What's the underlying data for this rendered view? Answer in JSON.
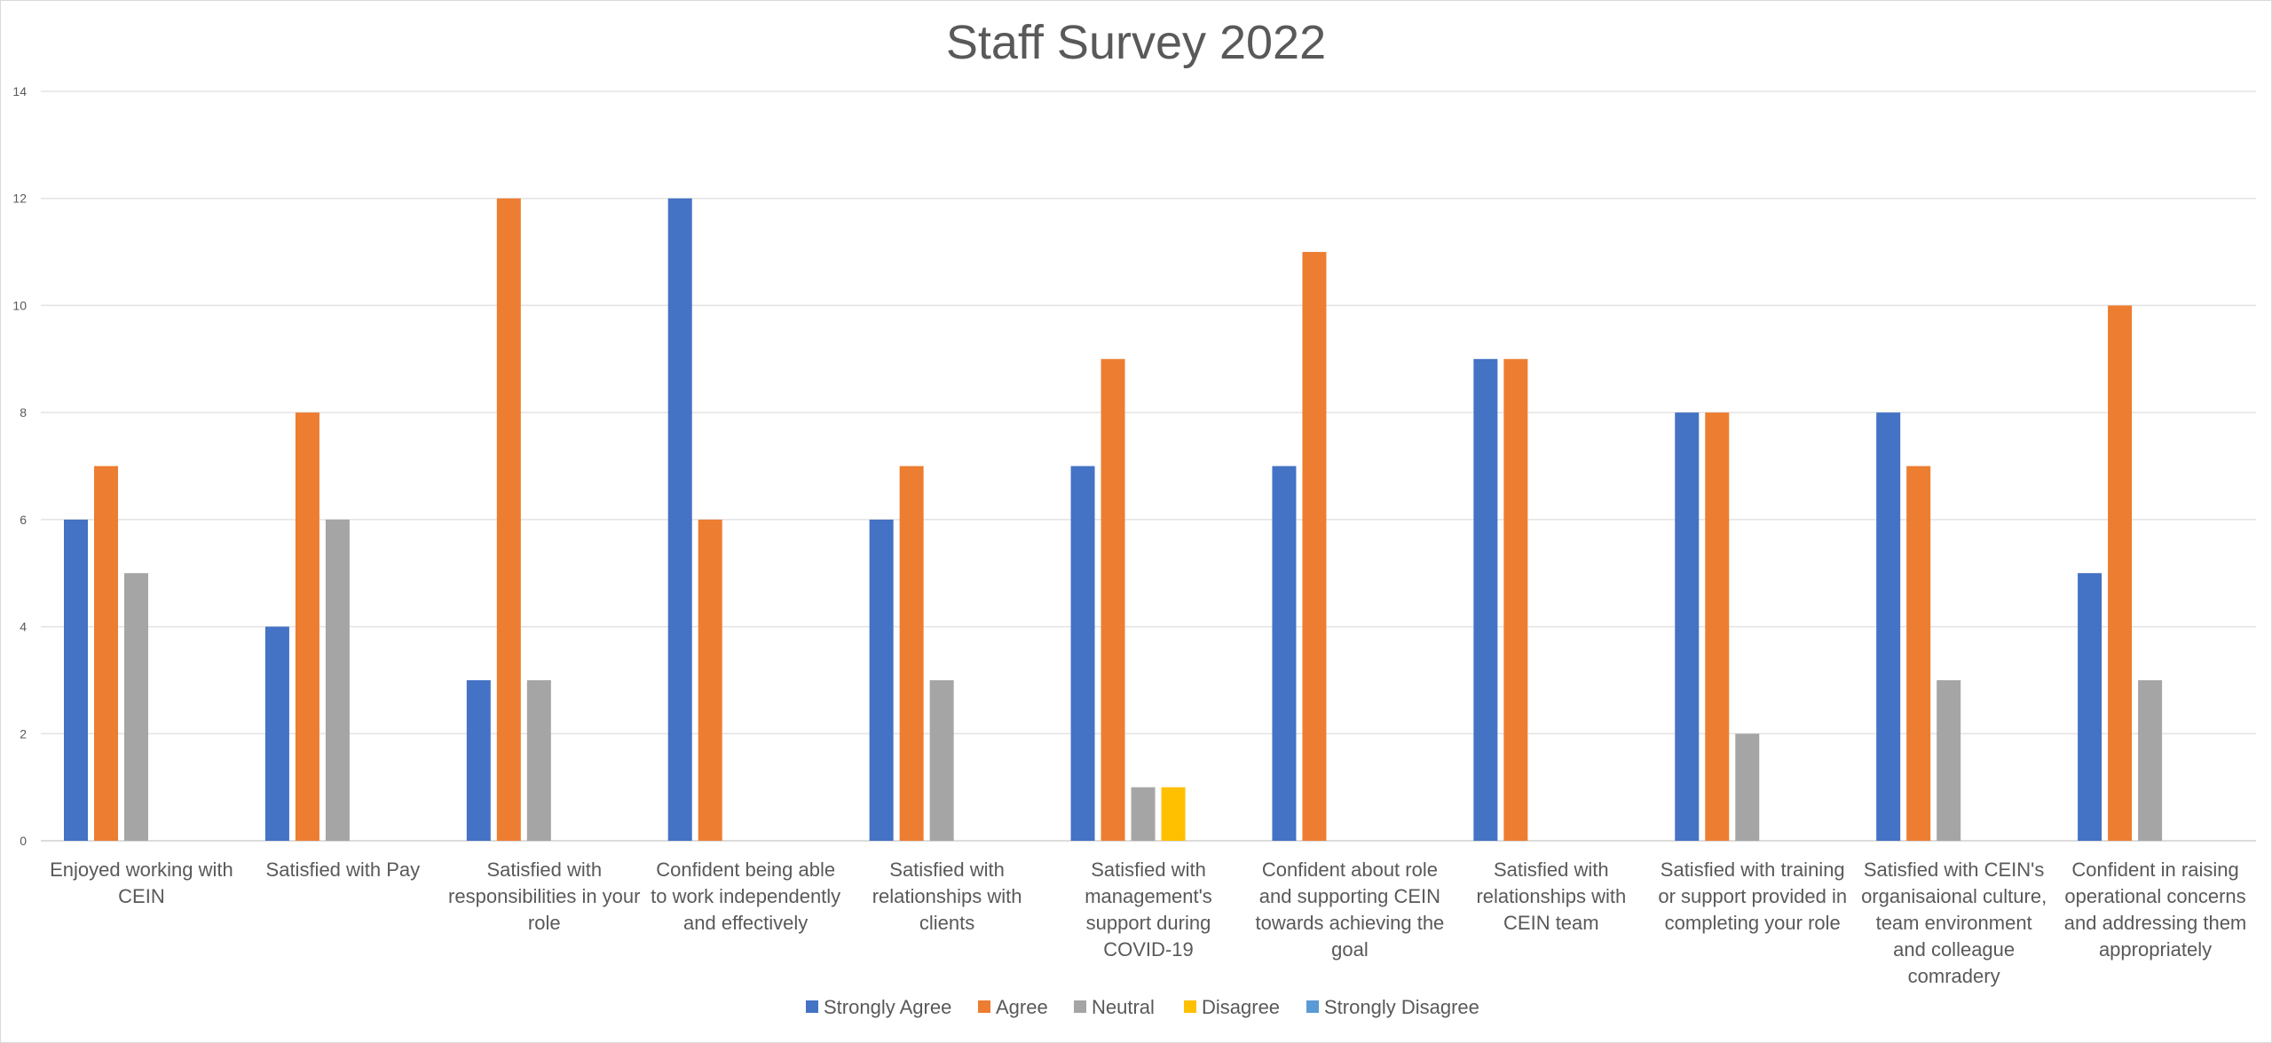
{
  "chart_data": {
    "type": "bar",
    "title": "Staff Survey 2022",
    "xlabel": "",
    "ylabel": "",
    "ylim": [
      0,
      14
    ],
    "yticks": [
      0,
      2,
      4,
      6,
      8,
      10,
      12,
      14
    ],
    "grid": true,
    "legend_position": "bottom",
    "categories": [
      [
        "Enjoyed working with",
        "CEIN"
      ],
      [
        "Satisfied with Pay"
      ],
      [
        "Satisfied with",
        "responsibilities in your",
        "role"
      ],
      [
        "Confident being able",
        "to work independently",
        "and effectively"
      ],
      [
        "Satisfied with",
        "relationships with",
        "clients"
      ],
      [
        "Satisfied with",
        "management's",
        "support during",
        "COVID-19"
      ],
      [
        "Confident about role",
        "and supporting CEIN",
        "towards achieving the",
        "goal"
      ],
      [
        "Satisfied with",
        "relationships with",
        "CEIN team"
      ],
      [
        "Satisfied with training",
        "or support provided in",
        "completing your role"
      ],
      [
        "Satisfied with CEIN's",
        "organisaional culture,",
        "team environment",
        "and colleague",
        "comradery"
      ],
      [
        "Confident in raising",
        "operational concerns",
        "and addressing them",
        "appropriately"
      ]
    ],
    "series": [
      {
        "name": "Strongly Agree",
        "color": "#4472C4",
        "values": [
          6,
          4,
          3,
          12,
          6,
          7,
          7,
          9,
          8,
          8,
          5
        ]
      },
      {
        "name": "Agree",
        "color": "#ED7D31",
        "values": [
          7,
          8,
          12,
          6,
          7,
          9,
          11,
          9,
          8,
          7,
          10
        ]
      },
      {
        "name": "Neutral",
        "color": "#A5A5A5",
        "values": [
          5,
          6,
          3,
          0,
          3,
          1,
          0,
          0,
          2,
          3,
          3
        ]
      },
      {
        "name": "Disagree",
        "color": "#FFC000",
        "values": [
          0,
          0,
          0,
          0,
          0,
          1,
          0,
          0,
          0,
          0,
          0
        ]
      },
      {
        "name": "Strongly Disagree",
        "color": "#5B9BD5",
        "values": [
          0,
          0,
          0,
          0,
          0,
          0,
          0,
          0,
          0,
          0,
          0
        ]
      }
    ]
  }
}
